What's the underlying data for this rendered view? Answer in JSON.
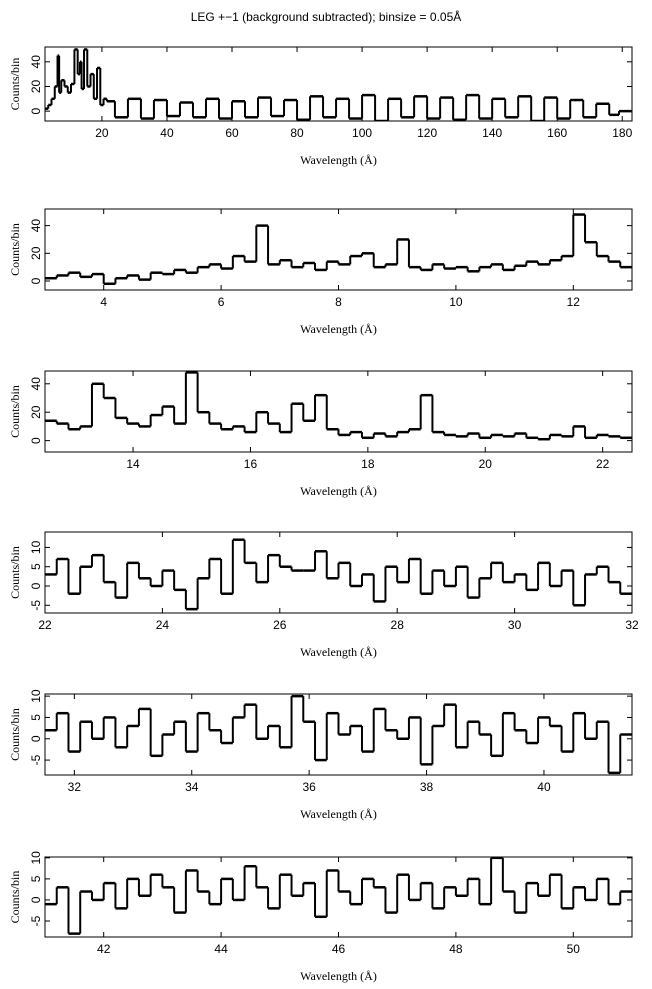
{
  "chart_data": [
    {
      "type": "line",
      "title": "LEG +−1 (background subtracted); binsize = 0.05Å",
      "xlabel": "Wavelength (Å)",
      "ylabel": "Counts/bin",
      "color": "#000000",
      "x": [
        3,
        4,
        5,
        6,
        6.7,
        7,
        8,
        9,
        10,
        11,
        12.1,
        13,
        13.5,
        14,
        15,
        16,
        17,
        18,
        19,
        20,
        21,
        22,
        26,
        30,
        34,
        38,
        42,
        46,
        50,
        54,
        58,
        62,
        66,
        70,
        74,
        78,
        82,
        86,
        90,
        94,
        98,
        102,
        106,
        110,
        114,
        118,
        122,
        126,
        130,
        134,
        138,
        142,
        146,
        150,
        154,
        158,
        162,
        166,
        170,
        174,
        178,
        180,
        182
      ],
      "values": [
        2,
        5,
        10,
        20,
        45,
        15,
        25,
        20,
        15,
        22,
        50,
        30,
        40,
        18,
        50,
        20,
        30,
        10,
        35,
        5,
        10,
        8,
        -5,
        10,
        -6,
        9,
        -4,
        7,
        -5,
        10,
        -6,
        8,
        -5,
        11,
        -4,
        9,
        -7,
        12,
        -5,
        10,
        -6,
        13,
        -8,
        10,
        -5,
        12,
        -6,
        11,
        -7,
        13,
        -6,
        10,
        -5,
        12,
        -8,
        11,
        -6,
        9,
        -5,
        6,
        -3,
        0,
        0
      ],
      "xlim": [
        2.5,
        183
      ],
      "ylim": [
        -8,
        52
      ],
      "xticks": [
        20,
        40,
        60,
        80,
        100,
        120,
        140,
        160,
        180
      ],
      "yticks": [
        0,
        20,
        40
      ]
    },
    {
      "type": "line",
      "xlabel": "Wavelength (Å)",
      "ylabel": "Counts/bin",
      "color": "#000000",
      "x": [
        3.1,
        3.3,
        3.5,
        3.7,
        3.9,
        4.1,
        4.3,
        4.5,
        4.7,
        4.9,
        5.1,
        5.3,
        5.5,
        5.7,
        5.9,
        6.1,
        6.3,
        6.5,
        6.7,
        6.9,
        7.1,
        7.3,
        7.5,
        7.7,
        7.9,
        8.1,
        8.3,
        8.5,
        8.7,
        8.9,
        9.1,
        9.3,
        9.5,
        9.7,
        9.9,
        10.1,
        10.3,
        10.5,
        10.7,
        10.9,
        11.1,
        11.3,
        11.5,
        11.7,
        11.9,
        12.1,
        12.3,
        12.5,
        12.7,
        12.9
      ],
      "values": [
        2,
        4,
        6,
        3,
        5,
        -2,
        2,
        4,
        1,
        6,
        5,
        8,
        6,
        10,
        12,
        9,
        18,
        14,
        40,
        12,
        15,
        10,
        13,
        8,
        14,
        12,
        18,
        20,
        10,
        12,
        30,
        10,
        8,
        12,
        9,
        10,
        7,
        10,
        12,
        8,
        11,
        14,
        12,
        15,
        18,
        48,
        28,
        18,
        14,
        10
      ],
      "xlim": [
        3,
        13
      ],
      "ylim": [
        -6.5,
        52
      ],
      "xticks": [
        4,
        6,
        8,
        10,
        12
      ],
      "yticks": [
        0,
        20,
        40
      ]
    },
    {
      "type": "line",
      "xlabel": "Wavelength (Å)",
      "ylabel": "Counts/bin",
      "color": "#000000",
      "x": [
        12.6,
        12.8,
        13.0,
        13.2,
        13.4,
        13.6,
        13.8,
        14.0,
        14.2,
        14.4,
        14.6,
        14.8,
        15.0,
        15.2,
        15.4,
        15.6,
        15.8,
        16.0,
        16.2,
        16.4,
        16.6,
        16.8,
        17.0,
        17.2,
        17.4,
        17.6,
        17.8,
        18.0,
        18.2,
        18.4,
        18.6,
        18.8,
        19.0,
        19.2,
        19.4,
        19.6,
        19.8,
        20.0,
        20.2,
        20.4,
        20.6,
        20.8,
        21.0,
        21.2,
        21.4,
        21.6,
        21.8,
        22.0,
        22.2,
        22.4
      ],
      "values": [
        14,
        12,
        8,
        10,
        40,
        30,
        16,
        12,
        10,
        18,
        24,
        12,
        48,
        20,
        12,
        8,
        10,
        6,
        20,
        12,
        6,
        26,
        14,
        32,
        8,
        4,
        6,
        2,
        5,
        3,
        6,
        8,
        32,
        6,
        4,
        3,
        5,
        2,
        4,
        3,
        5,
        2,
        1,
        4,
        3,
        10,
        2,
        4,
        3,
        2
      ],
      "xlim": [
        12.5,
        22.5
      ],
      "ylim": [
        -8,
        49
      ],
      "xticks": [
        14,
        16,
        18,
        20,
        22
      ],
      "yticks": [
        0,
        20,
        40
      ]
    },
    {
      "type": "line",
      "xlabel": "Wavelength (Å)",
      "ylabel": "Counts/bin",
      "color": "#000000",
      "x": [
        22.1,
        22.3,
        22.5,
        22.7,
        22.9,
        23.1,
        23.3,
        23.5,
        23.7,
        23.9,
        24.1,
        24.3,
        24.5,
        24.7,
        24.9,
        25.1,
        25.3,
        25.5,
        25.7,
        25.9,
        26.1,
        26.3,
        26.5,
        26.7,
        26.9,
        27.1,
        27.3,
        27.5,
        27.7,
        27.9,
        28.1,
        28.3,
        28.5,
        28.7,
        28.9,
        29.1,
        29.3,
        29.5,
        29.7,
        29.9,
        30.1,
        30.3,
        30.5,
        30.7,
        30.9,
        31.1,
        31.3,
        31.5,
        31.7,
        31.9
      ],
      "values": [
        3,
        7,
        -2,
        5,
        8,
        1,
        -3,
        6,
        2,
        0,
        4,
        -1,
        -6,
        2,
        7,
        -2,
        12,
        6,
        1,
        8,
        5,
        4,
        4,
        9,
        2,
        6,
        0,
        3,
        -4,
        5,
        1,
        7,
        -2,
        4,
        0,
        5,
        -3,
        2,
        6,
        1,
        3,
        -1,
        6,
        0,
        4,
        -5,
        3,
        5,
        1,
        -2
      ],
      "xlim": [
        22,
        32
      ],
      "ylim": [
        -7,
        14
      ],
      "xticks": [
        22,
        24,
        26,
        28,
        30,
        32
      ],
      "yticks": [
        -5,
        0,
        5,
        10
      ]
    },
    {
      "type": "line",
      "xlabel": "Wavelength (Å)",
      "ylabel": "Counts/bin",
      "color": "#000000",
      "x": [
        31.6,
        31.8,
        32.0,
        32.2,
        32.4,
        32.6,
        32.8,
        33.0,
        33.2,
        33.4,
        33.6,
        33.8,
        34.0,
        34.2,
        34.4,
        34.6,
        34.8,
        35.0,
        35.2,
        35.4,
        35.6,
        35.8,
        36.0,
        36.2,
        36.4,
        36.6,
        36.8,
        37.0,
        37.2,
        37.4,
        37.6,
        37.8,
        38.0,
        38.2,
        38.4,
        38.6,
        38.8,
        39.0,
        39.2,
        39.4,
        39.6,
        39.8,
        40.0,
        40.2,
        40.4,
        40.6,
        40.8,
        41.0,
        41.2,
        41.4
      ],
      "values": [
        2,
        6,
        -3,
        4,
        0,
        5,
        -2,
        3,
        7,
        -4,
        1,
        4,
        -3,
        6,
        2,
        -1,
        5,
        8,
        0,
        3,
        -2,
        10,
        4,
        -5,
        6,
        1,
        3,
        -3,
        7,
        2,
        0,
        5,
        -6,
        3,
        8,
        -2,
        4,
        1,
        -4,
        6,
        2,
        -1,
        5,
        3,
        -3,
        6,
        0,
        4,
        -8,
        1
      ],
      "xlim": [
        31.5,
        41.5
      ],
      "ylim": [
        -8.5,
        10.5
      ],
      "xticks": [
        32,
        34,
        36,
        38,
        40
      ],
      "yticks": [
        -5,
        0,
        5,
        10
      ]
    },
    {
      "type": "line",
      "xlabel": "Wavelength (Å)",
      "ylabel": "Counts/bin",
      "color": "#000000",
      "x": [
        41.1,
        41.3,
        41.5,
        41.7,
        41.9,
        42.1,
        42.3,
        42.5,
        42.7,
        42.9,
        43.1,
        43.3,
        43.5,
        43.7,
        43.9,
        44.1,
        44.3,
        44.5,
        44.7,
        44.9,
        45.1,
        45.3,
        45.5,
        45.7,
        45.9,
        46.1,
        46.3,
        46.5,
        46.7,
        46.9,
        47.1,
        47.3,
        47.5,
        47.7,
        47.9,
        48.1,
        48.3,
        48.5,
        48.7,
        48.9,
        49.1,
        49.3,
        49.5,
        49.7,
        49.9,
        50.1,
        50.3,
        50.5,
        50.7,
        50.9
      ],
      "values": [
        -1,
        3,
        -8,
        2,
        0,
        4,
        -2,
        5,
        1,
        6,
        3,
        -3,
        7,
        2,
        -1,
        5,
        0,
        8,
        3,
        -2,
        6,
        1,
        4,
        -4,
        7,
        2,
        -1,
        5,
        3,
        -3,
        6,
        0,
        4,
        -2,
        3,
        1,
        5,
        -1,
        10,
        2,
        -3,
        4,
        1,
        6,
        -2,
        3,
        0,
        5,
        -1,
        2
      ],
      "xlim": [
        41,
        51
      ],
      "ylim": [
        -8.8,
        10.2
      ],
      "xticks": [
        42,
        44,
        46,
        48,
        50
      ],
      "yticks": [
        -5,
        0,
        5,
        10
      ]
    }
  ]
}
